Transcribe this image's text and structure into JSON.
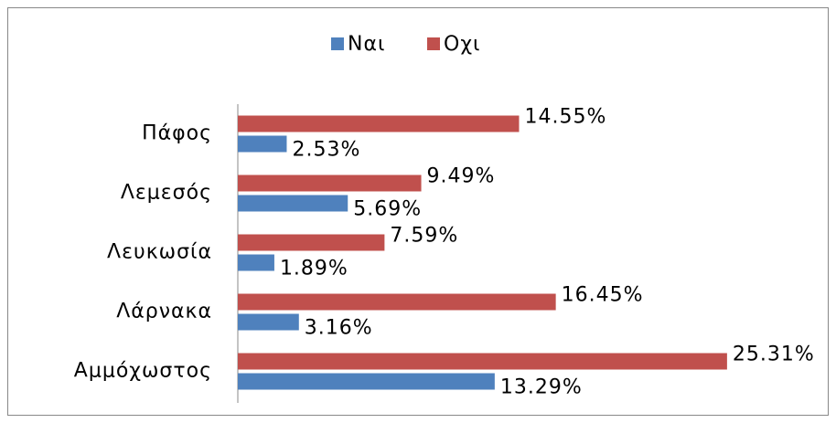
{
  "chart_data": {
    "type": "hbar",
    "categories": [
      "Πάφος",
      "Λεμεσός",
      "Λευκωσία",
      "Λάρνακα",
      "Αμμόχωστος"
    ],
    "series": [
      {
        "name": "Ναι",
        "color": "#4f81bd",
        "values": [
          2.53,
          5.69,
          1.89,
          3.16,
          13.29
        ],
        "value_labels": [
          "2.53%",
          "5.69%",
          "1.89%",
          "3.16%",
          "13.29%"
        ]
      },
      {
        "name": "Οχι",
        "color": "#c0504d",
        "values": [
          14.55,
          9.49,
          7.59,
          16.45,
          25.31
        ],
        "value_labels": [
          "14.55%",
          "9.49%",
          "7.59%",
          "16.45%",
          "25.31%"
        ]
      }
    ],
    "xlim": [
      0,
      30
    ],
    "legend": "top"
  }
}
